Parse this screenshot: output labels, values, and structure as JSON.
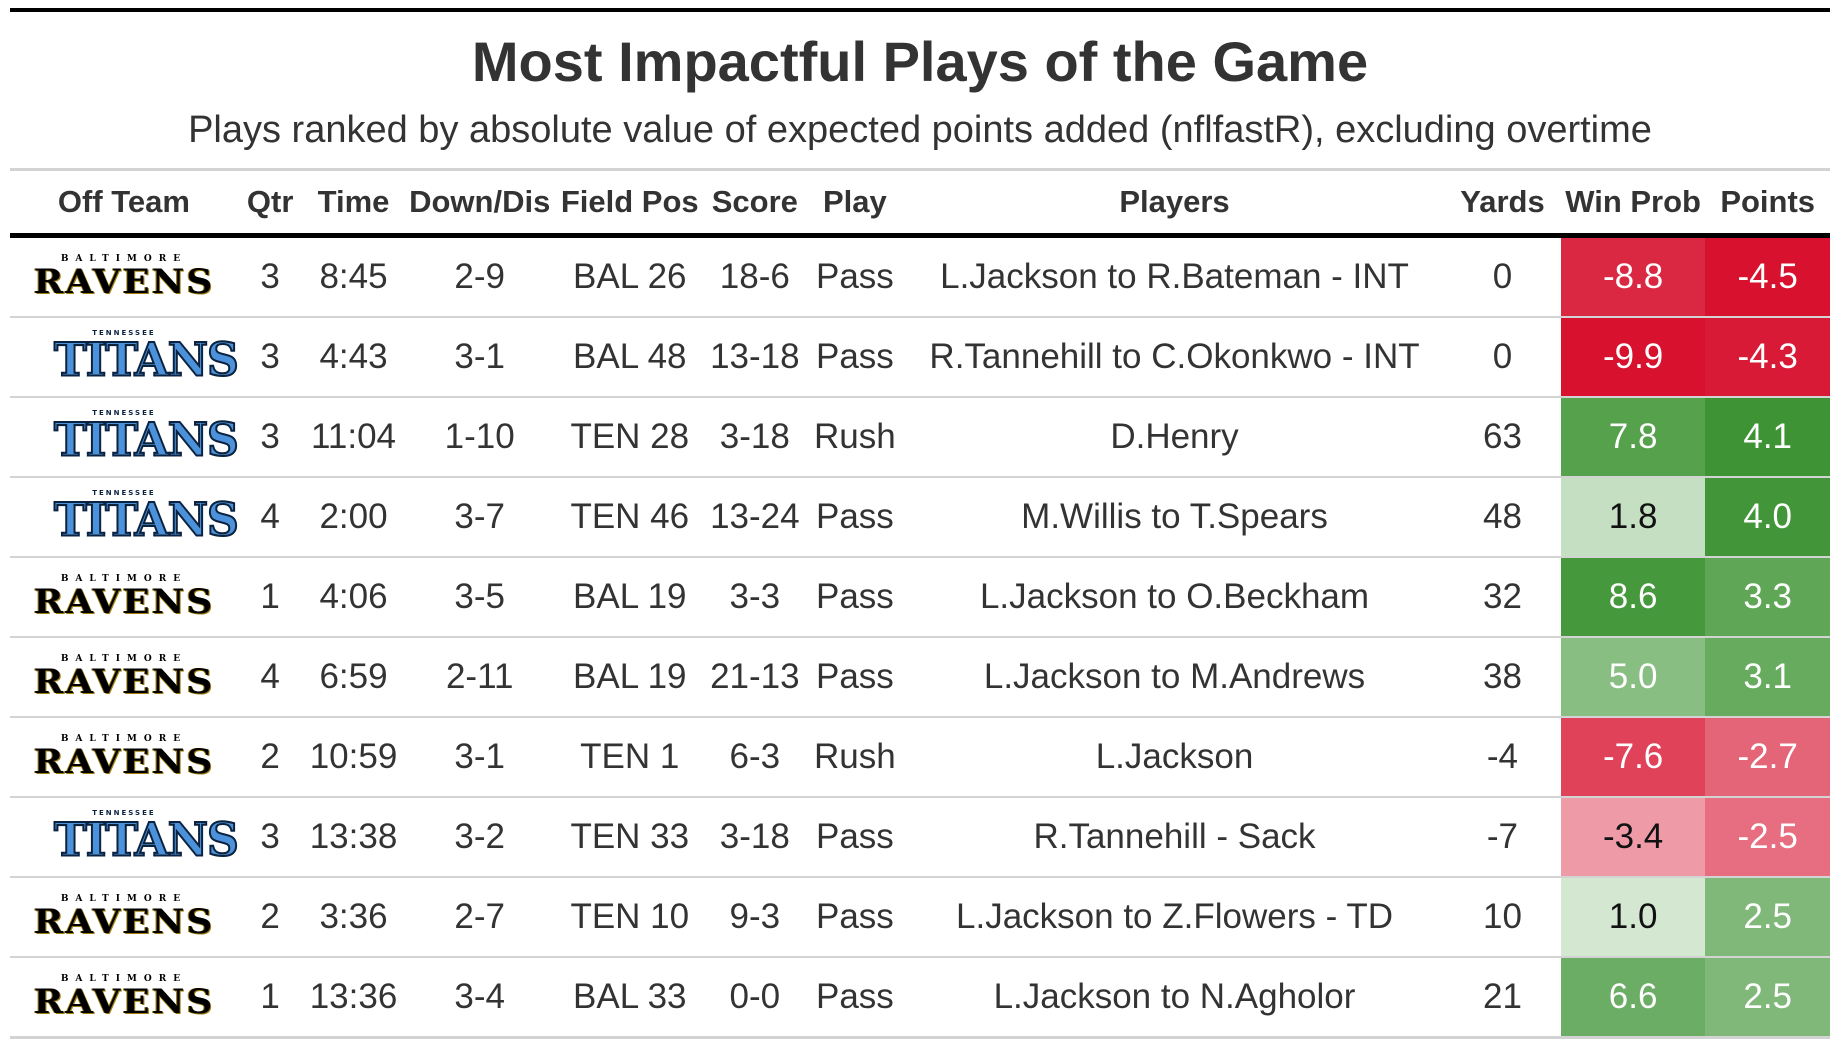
{
  "chart_data": {
    "type": "table",
    "title": "Most Impactful Plays of the Game",
    "subtitle": "Plays ranked by absolute value of expected points added (nflfastR), excluding overtime",
    "columns": [
      "Off Team",
      "Qtr",
      "Time",
      "Down/Dis",
      "Field Pos",
      "Score",
      "Play",
      "Players",
      "Yards",
      "Win Prob",
      "Points"
    ],
    "rows": [
      {
        "team": "ravens",
        "qtr": "3",
        "time": "8:45",
        "down": "2-9",
        "field": "BAL 26",
        "score": "18-6",
        "play": "Pass",
        "players": "L.Jackson to R.Bateman - INT",
        "yards": "0",
        "win_prob": "-8.8",
        "points": "-4.5"
      },
      {
        "team": "titans",
        "qtr": "3",
        "time": "4:43",
        "down": "3-1",
        "field": "BAL 48",
        "score": "13-18",
        "play": "Pass",
        "players": "R.Tannehill to C.Okonkwo - INT",
        "yards": "0",
        "win_prob": "-9.9",
        "points": "-4.3"
      },
      {
        "team": "titans",
        "qtr": "3",
        "time": "11:04",
        "down": "1-10",
        "field": "TEN 28",
        "score": "3-18",
        "play": "Rush",
        "players": "D.Henry",
        "yards": "63",
        "win_prob": "7.8",
        "points": "4.1"
      },
      {
        "team": "titans",
        "qtr": "4",
        "time": "2:00",
        "down": "3-7",
        "field": "TEN 46",
        "score": "13-24",
        "play": "Pass",
        "players": "M.Willis to T.Spears",
        "yards": "48",
        "win_prob": "1.8",
        "points": "4.0"
      },
      {
        "team": "ravens",
        "qtr": "1",
        "time": "4:06",
        "down": "3-5",
        "field": "BAL 19",
        "score": "3-3",
        "play": "Pass",
        "players": "L.Jackson to O.Beckham",
        "yards": "32",
        "win_prob": "8.6",
        "points": "3.3"
      },
      {
        "team": "ravens",
        "qtr": "4",
        "time": "6:59",
        "down": "2-11",
        "field": "BAL 19",
        "score": "21-13",
        "play": "Pass",
        "players": "L.Jackson to M.Andrews",
        "yards": "38",
        "win_prob": "5.0",
        "points": "3.1"
      },
      {
        "team": "ravens",
        "qtr": "2",
        "time": "10:59",
        "down": "3-1",
        "field": "TEN 1",
        "score": "6-3",
        "play": "Rush",
        "players": "L.Jackson",
        "yards": "-4",
        "win_prob": "-7.6",
        "points": "-2.7"
      },
      {
        "team": "titans",
        "qtr": "3",
        "time": "13:38",
        "down": "3-2",
        "field": "TEN 33",
        "score": "3-18",
        "play": "Pass",
        "players": "R.Tannehill - Sack",
        "yards": "-7",
        "win_prob": "-3.4",
        "points": "-2.5"
      },
      {
        "team": "ravens",
        "qtr": "2",
        "time": "3:36",
        "down": "2-7",
        "field": "TEN 10",
        "score": "9-3",
        "play": "Pass",
        "players": "L.Jackson to Z.Flowers - TD",
        "yards": "10",
        "win_prob": "1.0",
        "points": "2.5"
      },
      {
        "team": "ravens",
        "qtr": "1",
        "time": "13:36",
        "down": "3-4",
        "field": "BAL 33",
        "score": "0-0",
        "play": "Pass",
        "players": "L.Jackson to N.Agholor",
        "yards": "21",
        "win_prob": "6.6",
        "points": "2.5"
      }
    ],
    "heat_colors": {
      "negative": "#d7112e",
      "positive": "#2e8b23",
      "neutral": "#ffffff"
    },
    "win_prob_range": [
      -9.9,
      9.9
    ],
    "points_range": [
      -4.5,
      4.5
    ]
  },
  "logos": {
    "ravens": {
      "small": "BALTIMORE",
      "big": "RAVENS"
    },
    "titans": {
      "small": "TENNESSEE",
      "big": "TITANS"
    }
  }
}
